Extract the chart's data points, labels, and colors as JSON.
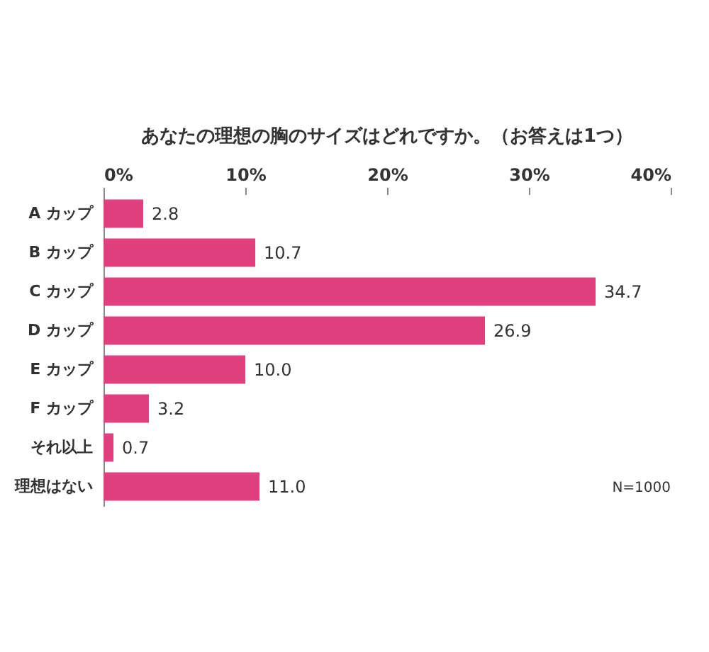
{
  "chart_data": {
    "type": "bar",
    "orientation": "horizontal",
    "title": "あなたの理想の胸のサイズはどれですか。（お答えは1つ）",
    "categories": [
      "A カップ",
      "B カップ",
      "C カップ",
      "D カップ",
      "E カップ",
      "F カップ",
      "それ以上",
      "理想はない"
    ],
    "values": [
      2.8,
      10.7,
      34.7,
      26.9,
      10.0,
      3.2,
      0.7,
      11.0
    ],
    "value_labels": [
      "2.8",
      "10.7",
      "34.7",
      "26.9",
      "10.0",
      "3.2",
      "0.7",
      "11.0"
    ],
    "color": "#e0407e",
    "xlim": [
      0,
      40
    ],
    "xticks": [
      {
        "value": 0,
        "label": "0%"
      },
      {
        "value": 10,
        "label": "10%"
      },
      {
        "value": 20,
        "label": "20%"
      },
      {
        "value": 30,
        "label": "30%"
      },
      {
        "value": 40,
        "label": "40%"
      }
    ],
    "annotations": [
      "N=1000"
    ]
  }
}
